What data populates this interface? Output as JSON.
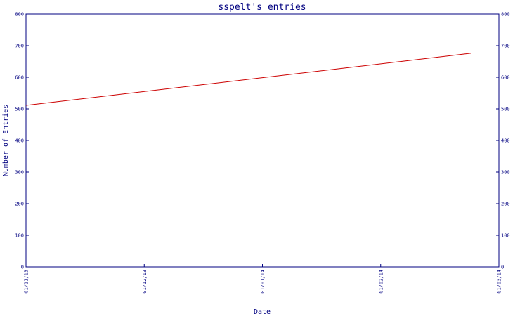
{
  "chart_data": {
    "type": "line",
    "title": "sspelt's entries",
    "xlabel": "Date",
    "ylabel": "Number of Entries",
    "x_ticks": [
      "01/11/13",
      "01/12/13",
      "01/01/14",
      "01/02/14",
      "01/03/14"
    ],
    "y_ticks": [
      0,
      100,
      200,
      300,
      400,
      500,
      600,
      700,
      800
    ],
    "ylim": [
      0,
      800
    ],
    "xlim": [
      "2013-11-01",
      "2014-03-01"
    ],
    "grid": false,
    "legend": "none",
    "series": [
      {
        "color": "#cc0000",
        "points": [
          {
            "x": "2013-11-01",
            "y": 511
          },
          {
            "x": "2014-02-22",
            "y": 676
          }
        ]
      }
    ]
  }
}
